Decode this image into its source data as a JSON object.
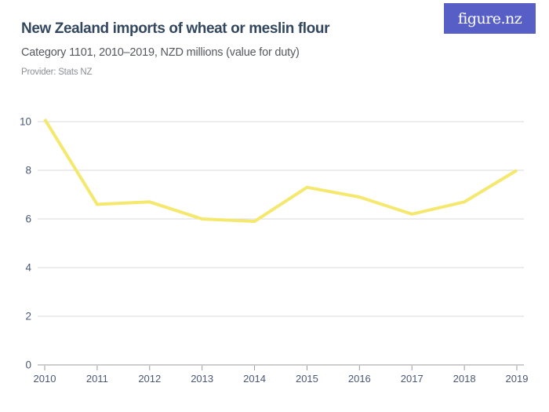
{
  "header": {
    "title": "New Zealand imports of wheat or meslin flour",
    "subtitle": "Category 1101, 2010–2019, NZD millions (value for duty)",
    "provider": "Provider: Stats NZ",
    "logo_text": "figure.nz"
  },
  "colors": {
    "line": "#f5e86e",
    "grid": "#d9d9d9",
    "axis": "#9b9b9b",
    "axis_label": "#4a5878",
    "title": "#33485f",
    "subtitle": "#55595e",
    "provider": "#8b8f94",
    "logo_bg": "#575fc7",
    "logo_text": "#ffffff",
    "background": "#ffffff"
  },
  "chart_data": {
    "type": "line",
    "title": "New Zealand imports of wheat or meslin flour",
    "subtitle": "Category 1101, 2010–2019, NZD millions (value for duty)",
    "categories": [
      "2010",
      "2011",
      "2012",
      "2013",
      "2014",
      "2015",
      "2016",
      "2017",
      "2018",
      "2019"
    ],
    "values": [
      10.1,
      6.6,
      6.7,
      6.0,
      5.9,
      7.3,
      6.9,
      6.2,
      6.7,
      8.0
    ],
    "xlabel": "",
    "ylabel": "",
    "ylim": [
      0,
      10
    ],
    "y_ticks": [
      0,
      2,
      4,
      6,
      8,
      10
    ],
    "grid": true,
    "legend": false
  }
}
